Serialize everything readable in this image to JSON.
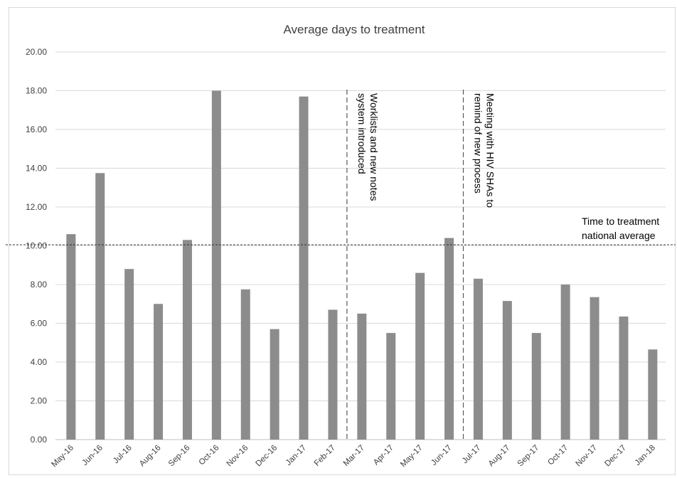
{
  "chart_data": {
    "type": "bar",
    "title": "Average days to treatment",
    "xlabel": "",
    "ylabel": "",
    "ylim": [
      0,
      20
    ],
    "yticks": [
      "0.00",
      "2.00",
      "4.00",
      "6.00",
      "8.00",
      "10.00",
      "12.00",
      "14.00",
      "16.00",
      "18.00",
      "20.00"
    ],
    "grid": true,
    "categories": [
      "May-16",
      "Jun-16",
      "Jul-16",
      "Aug-16",
      "Sep-16",
      "Oct-16",
      "Nov-16",
      "Dec-16",
      "Jan-17",
      "Feb-17",
      "Mar-17",
      "Apr-17",
      "May-17",
      "Jun-17",
      "Jul-17",
      "Aug-17",
      "Sep-17",
      "Oct-17",
      "Nov-17",
      "Dec-17",
      "Jan-18"
    ],
    "values": [
      10.6,
      13.75,
      8.8,
      7.0,
      10.3,
      18.0,
      7.75,
      5.7,
      17.7,
      6.7,
      6.5,
      5.5,
      8.6,
      10.4,
      8.3,
      7.15,
      5.5,
      8.0,
      7.35,
      6.35,
      4.65
    ],
    "bar_color": "#8c8c8c",
    "reference_line": {
      "value": 10.05,
      "style": "dotted",
      "label_lines": [
        "Time to treatment",
        "national average"
      ]
    },
    "annotations": [
      {
        "position": "between Feb-17 and Mar-17",
        "style": "dashed",
        "text_lines": [
          "Worklists and new notes",
          "system introduced"
        ]
      },
      {
        "position": "between Jun-17 and Jul-17",
        "style": "dashed",
        "text_lines": [
          "Meeting with HIV SHAs to",
          "remind of new process"
        ]
      }
    ]
  }
}
